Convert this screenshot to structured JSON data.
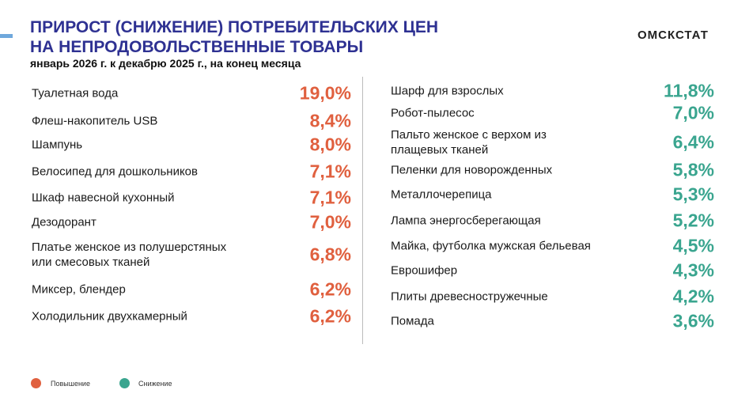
{
  "header": {
    "title": [
      "ПРИРОСТ (СНИЖЕНИЕ) ПОТРЕБИТЕЛЬСКИХ ЦЕН",
      "НА НЕПРОДОВОЛЬСТВЕННЫЕ ТОВАРЫ"
    ],
    "subtitle": "январь 2026 г. к декабрю 2025 г., на конец месяца",
    "brand": "ОМСКСТАТ"
  },
  "left": [
    {
      "name": "Туалетная вода",
      "value": "19,0%"
    },
    {
      "name": "Флеш-накопитель USB",
      "value": "8,4%"
    },
    {
      "name": "Шампунь",
      "value": "8,0%"
    },
    {
      "name": "Велосипед для дошкольников",
      "value": "7,1%"
    },
    {
      "name": "Шкаф навесной кухонный",
      "value": "7,1%"
    },
    {
      "name": "Дезодорант",
      "value": "7,0%"
    },
    {
      "name": "Платье женское из полушерстяных\nили смесовых тканей",
      "value": "6,8%"
    },
    {
      "name": "Миксер, блендер",
      "value": "6,2%"
    },
    {
      "name": "Холодильник двухкамерный",
      "value": "6,2%"
    }
  ],
  "right": [
    {
      "name": "Шарф для взрослых",
      "value": "11,8%"
    },
    {
      "name": "Робот-пылесос",
      "value": "7,0%"
    },
    {
      "name": "Пальто женское с верхом из\nплащевых тканей",
      "value": "6,4%"
    },
    {
      "name": "Пеленки для новорожденных",
      "value": "5,8%"
    },
    {
      "name": "Металлочерепица",
      "value": "5,3%"
    },
    {
      "name": "Лампа энергосберегающая",
      "value": "5,2%"
    },
    {
      "name": "Майка, футболка мужская бельевая",
      "value": "4,5%"
    },
    {
      "name": "Еврошифер",
      "value": "4,3%"
    },
    {
      "name": "Плиты древесностружечные",
      "value": "4,2%"
    },
    {
      "name": "Помада",
      "value": "3,6%"
    }
  ],
  "legend": [
    "Повышение",
    "Снижение"
  ]
}
